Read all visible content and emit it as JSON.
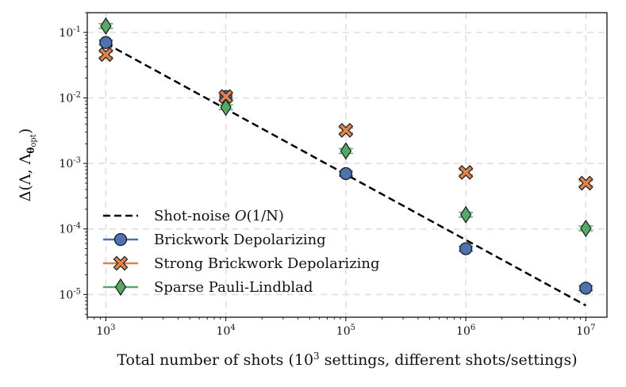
{
  "chart_data": {
    "type": "scatter",
    "xscale": "log",
    "yscale": "log",
    "xlim": [
      700,
      15000000
    ],
    "ylim": [
      4.5e-06,
      0.2
    ],
    "xlabel": "Total number of shots (10^3 settings, different shots/settings)",
    "ylabel": "Δ(Λ, Λθopt)",
    "grid": true,
    "legend_position": "lower-left",
    "xticks": [
      {
        "value": 1000,
        "label": "10^3"
      },
      {
        "value": 10000,
        "label": "10^4"
      },
      {
        "value": 100000,
        "label": "10^5"
      },
      {
        "value": 1000000,
        "label": "10^6"
      },
      {
        "value": 10000000,
        "label": "10^7"
      }
    ],
    "yticks": [
      {
        "value": 1e-05,
        "label": "10^-5"
      },
      {
        "value": 0.0001,
        "label": "10^-4"
      },
      {
        "value": 0.001,
        "label": "10^-3"
      },
      {
        "value": 0.01,
        "label": "10^-2"
      },
      {
        "value": 0.1,
        "label": "10^-1"
      }
    ],
    "reference_line": {
      "name": "Shot-noise O(1/N)",
      "x": [
        1000,
        10000000
      ],
      "y": [
        0.068,
        6.8e-06
      ],
      "color": "#000000",
      "style": "dashed"
    },
    "series": [
      {
        "name": "Brickwork Depolarizing",
        "marker": "circle",
        "color": "#4c72b0",
        "x": [
          1000,
          10000,
          100000,
          1000000,
          10000000
        ],
        "y": [
          0.07,
          0.0105,
          0.0007,
          5e-05,
          1.25e-05
        ]
      },
      {
        "name": "Strong Brickwork Depolarizing",
        "marker": "x",
        "color": "#dd8452",
        "x": [
          1000,
          10000,
          100000,
          1000000,
          10000000
        ],
        "y": [
          0.046,
          0.0105,
          0.0032,
          0.00073,
          0.0005
        ]
      },
      {
        "name": "Sparse Pauli-Lindblad",
        "marker": "diamond",
        "color": "#55a868",
        "x": [
          1000,
          10000,
          100000,
          1000000,
          10000000
        ],
        "y": [
          0.125,
          0.0072,
          0.00155,
          0.000165,
          0.000102
        ]
      }
    ]
  }
}
